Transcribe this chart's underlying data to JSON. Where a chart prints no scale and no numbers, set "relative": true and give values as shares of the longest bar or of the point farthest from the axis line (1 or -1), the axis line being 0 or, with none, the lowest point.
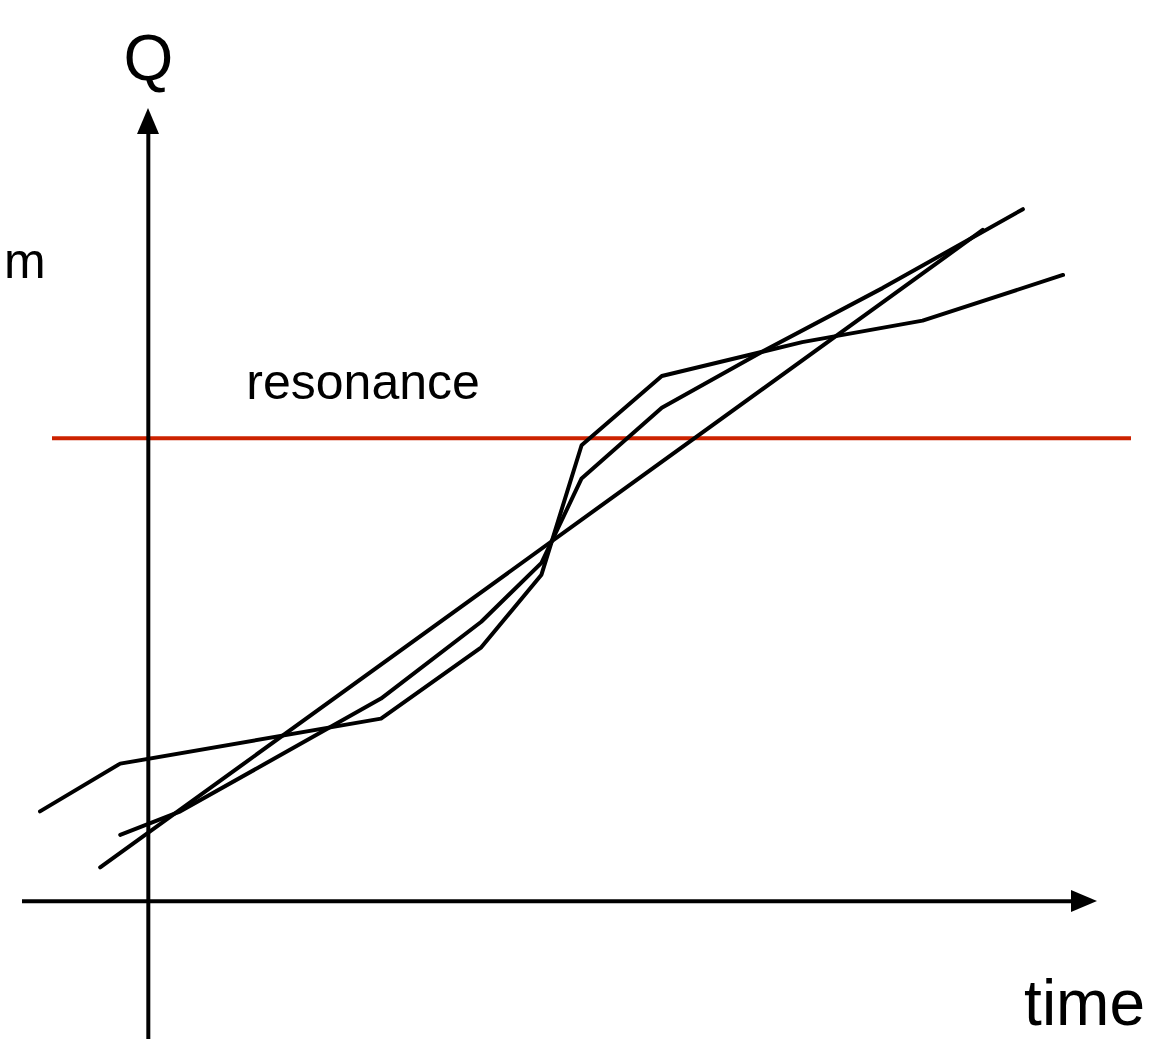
{
  "chart_data": {
    "type": "line",
    "relative": true,
    "xlabel": "time",
    "ylabel": "Q",
    "tick_labels": false,
    "legend": false,
    "marker": "none",
    "line_style": "solid",
    "categories": [
      null,
      null,
      null,
      null,
      null,
      null,
      null,
      null,
      null,
      null,
      null,
      null,
      null,
      null,
      null,
      null,
      null,
      null,
      null,
      null,
      null,
      null,
      null,
      null,
      null,
      null,
      null,
      null,
      null,
      null,
      null,
      null,
      null,
      null,
      null,
      null,
      null,
      null,
      null,
      null,
      null,
      null,
      null,
      null,
      null,
      null,
      null,
      null,
      null,
      null,
      null,
      null
    ],
    "series": [
      {
        "color": "#000000",
        "values": [
          null,
          null,
          null,
          0.049,
          null,
          null,
          null,
          null,
          null,
          null,
          null,
          null,
          null,
          null,
          null,
          null,
          null,
          null,
          null,
          null,
          null,
          null,
          null,
          null,
          null,
          null,
          null,
          null,
          null,
          null,
          null,
          null,
          null,
          null,
          null,
          null,
          null,
          null,
          null,
          null,
          null,
          null,
          null,
          null,
          null,
          null,
          null,
          0.97,
          null,
          null,
          null,
          null
        ]
      },
      {
        "color": "#000000",
        "values": [
          0.13,
          null,
          null,
          null,
          0.199,
          null,
          null,
          null,
          null,
          null,
          null,
          null,
          null,
          null,
          null,
          null,
          null,
          0.264,
          null,
          null,
          null,
          null,
          0.367,
          null,
          null,
          0.472,
          null,
          0.659,
          null,
          null,
          null,
          0.759,
          null,
          null,
          null,
          null,
          null,
          null,
          0.808,
          null,
          null,
          null,
          null,
          null,
          0.839,
          null,
          null,
          null,
          null,
          null,
          null,
          0.905
        ]
      },
      {
        "color": "#000000",
        "values": [
          null,
          null,
          null,
          null,
          0.096,
          null,
          null,
          0.13,
          null,
          null,
          null,
          null,
          null,
          null,
          null,
          null,
          null,
          0.293,
          null,
          null,
          null,
          null,
          0.404,
          null,
          null,
          0.489,
          null,
          0.611,
          null,
          null,
          null,
          0.713,
          null,
          null,
          null,
          null,
          0.794,
          null,
          null,
          null,
          null,
          null,
          0.886,
          null,
          null,
          null,
          null,
          null,
          null,
          1.0,
          null,
          null
        ]
      }
    ],
    "ref_lines": [
      {
        "axis": "y",
        "value": 0.669,
        "label": "resonance",
        "color": "#cc2200"
      }
    ],
    "annotations": [
      "m"
    ]
  }
}
